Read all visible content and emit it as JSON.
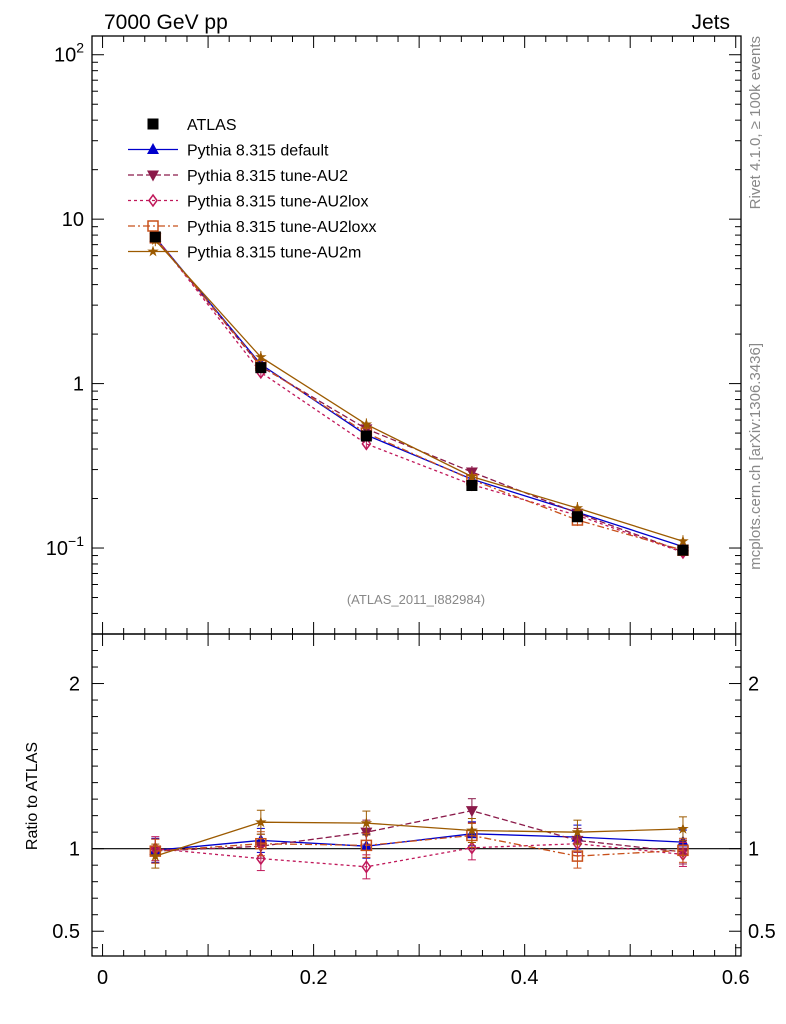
{
  "chart_data": {
    "type": "line",
    "title_left": "7000 GeV pp",
    "title_right": "Jets",
    "ref_label": "(ATLAS_2011_I882984)",
    "side_label_top": "Rivet 4.1.0, ≥ 100k events",
    "side_label_bottom": "mcplots.cern.ch [arXiv:1306.3436]",
    "x": [
      0.05,
      0.15,
      0.25,
      0.35,
      0.45,
      0.55
    ],
    "xlim": [
      -0.01,
      0.605
    ],
    "x_ticks": [
      {
        "v": 0,
        "label": "0"
      },
      {
        "v": 0.2,
        "label": "0.2"
      },
      {
        "v": 0.4,
        "label": "0.4"
      },
      {
        "v": 0.6,
        "label": "0.6"
      }
    ],
    "main": {
      "yscale": "log",
      "ylim": [
        0.03,
        130
      ],
      "y_ticks": [
        {
          "v": 0.1,
          "base": "10",
          "exp": "−1"
        },
        {
          "v": 1,
          "base": "1",
          "exp": ""
        },
        {
          "v": 10,
          "base": "10",
          "exp": ""
        },
        {
          "v": 100,
          "base": "10",
          "exp": "2"
        }
      ]
    },
    "ratio": {
      "ylabel": "Ratio to ATLAS",
      "ylim": [
        0.35,
        2.3
      ],
      "y_ticks": [
        {
          "v": 0.5,
          "label": "0.5"
        },
        {
          "v": 1,
          "label": "1"
        },
        {
          "v": 2,
          "label": "2"
        }
      ]
    },
    "series": [
      {
        "name": "ATLAS",
        "color": "#000000",
        "marker": "square",
        "dash": "",
        "line": false,
        "values": [
          7.8,
          1.25,
          0.48,
          0.24,
          0.155,
          0.097
        ],
        "ratio": [
          1.0,
          1.0,
          1.0,
          1.0,
          1.0,
          1.0
        ]
      },
      {
        "name": "Pythia 8.315 default",
        "color": "#0000cc",
        "marker": "triangle-up",
        "dash": "",
        "line": true,
        "values": [
          7.75,
          1.31,
          0.487,
          0.262,
          0.165,
          0.102
        ],
        "ratio": [
          0.99,
          1.05,
          1.015,
          1.09,
          1.07,
          1.04
        ]
      },
      {
        "name": "Pythia 8.315 tune-AU2",
        "color": "#8b1a4a",
        "marker": "triangle-down",
        "dash": "6,3",
        "line": true,
        "values": [
          7.7,
          1.27,
          0.53,
          0.29,
          0.163,
          0.095
        ],
        "ratio": [
          0.985,
          1.015,
          1.1,
          1.23,
          1.05,
          0.98
        ]
      },
      {
        "name": "Pythia 8.315 tune-AU2lox",
        "color": "#c0185a",
        "marker": "diamond-open",
        "dash": "3,3",
        "line": true,
        "values": [
          7.8,
          1.17,
          0.43,
          0.243,
          0.158,
          0.094
        ],
        "ratio": [
          1.0,
          0.94,
          0.89,
          1.005,
          1.03,
          0.965
        ]
      },
      {
        "name": "Pythia 8.315 tune-AU2loxx",
        "color": "#c8501a",
        "marker": "square-open",
        "dash": "7,3,2,3",
        "line": true,
        "values": [
          7.7,
          1.29,
          0.5,
          0.26,
          0.148,
          0.097
        ],
        "ratio": [
          0.985,
          1.03,
          1.02,
          1.08,
          0.955,
          0.99
        ]
      },
      {
        "name": "Pythia 8.315 tune-AU2m",
        "color": "#9c5a00",
        "marker": "star",
        "dash": "",
        "line": true,
        "values": [
          7.45,
          1.45,
          0.565,
          0.272,
          0.175,
          0.11
        ],
        "ratio": [
          0.955,
          1.16,
          1.155,
          1.11,
          1.1,
          1.12
        ]
      }
    ]
  }
}
